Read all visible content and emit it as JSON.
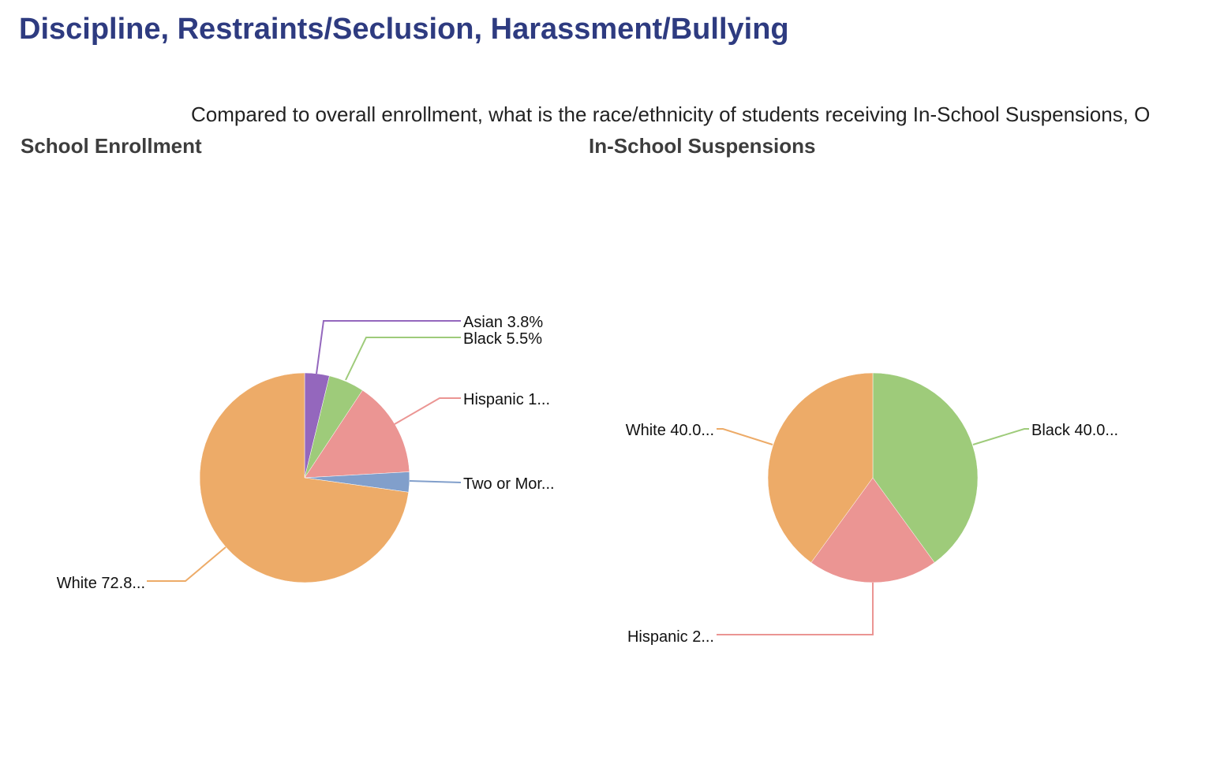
{
  "header": {
    "title": "Discipline, Restraints/Seclusion, Harassment/Bullying",
    "question": "Compared to overall enrollment, what is the race/ethnicity of students receiving In-School Suspensions, O"
  },
  "chart_data": [
    {
      "type": "pie",
      "title": "School Enrollment",
      "slices": [
        {
          "category": "Asian",
          "value": 3.8,
          "label": "Asian 3.8%",
          "color": "#9467bd"
        },
        {
          "category": "Black",
          "value": 5.5,
          "label": "Black 5.5%",
          "color": "#9ecb7a"
        },
        {
          "category": "Hispanic",
          "value": 14.8,
          "label": "Hispanic 1...",
          "color": "#eb9593"
        },
        {
          "category": "Two or More",
          "value": 3.1,
          "label": "Two or Mor...",
          "color": "#819fcb"
        },
        {
          "category": "White",
          "value": 72.8,
          "label": "White 72.8...",
          "color": "#edab68"
        }
      ]
    },
    {
      "type": "pie",
      "title": "In-School Suspensions",
      "slices": [
        {
          "category": "Black",
          "value": 40.0,
          "label": "Black 40.0...",
          "color": "#9ecb7a"
        },
        {
          "category": "Hispanic",
          "value": 20.0,
          "label": "Hispanic 2...",
          "color": "#eb9593"
        },
        {
          "category": "White",
          "value": 40.0,
          "label": "White 40.0...",
          "color": "#edab68"
        }
      ]
    }
  ]
}
